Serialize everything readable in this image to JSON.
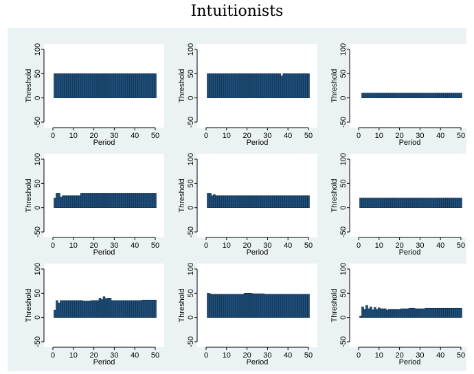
{
  "title": "Intuitionists",
  "colors": {
    "bar_fill": "#1f4e79",
    "bar_stroke": "#0e2b47",
    "background": "#eaf2f3",
    "panel": "#ffffff"
  },
  "chart_data": [
    {
      "type": "bar",
      "xlabel": "Period",
      "ylabel": "Threshold",
      "xlim": [
        0,
        50
      ],
      "ylim": [
        -50,
        100
      ],
      "xticks": [
        0,
        10,
        20,
        30,
        40,
        50
      ],
      "yticks": [
        -50,
        0,
        50,
        100
      ],
      "grid": false,
      "x_range": [
        1,
        50
      ],
      "values_spec": [
        {
          "from": 1,
          "to": 50,
          "v": 50
        }
      ]
    },
    {
      "type": "bar",
      "xlabel": "Period",
      "ylabel": "Threshold",
      "xlim": [
        0,
        50
      ],
      "ylim": [
        -50,
        100
      ],
      "xticks": [
        0,
        10,
        20,
        30,
        40,
        50
      ],
      "yticks": [
        -50,
        0,
        50,
        100
      ],
      "grid": false,
      "x_range": [
        1,
        50
      ],
      "values_spec": [
        {
          "from": 1,
          "to": 36,
          "v": 50
        },
        {
          "from": 37,
          "to": 37,
          "v": 45
        },
        {
          "from": 38,
          "to": 50,
          "v": 50
        }
      ]
    },
    {
      "type": "bar",
      "xlabel": "Period",
      "ylabel": "Threshold",
      "xlim": [
        0,
        50
      ],
      "ylim": [
        -50,
        100
      ],
      "xticks": [
        0,
        10,
        20,
        30,
        40,
        50
      ],
      "yticks": [
        -50,
        0,
        50,
        100
      ],
      "grid": false,
      "x_range": [
        2,
        50
      ],
      "values_spec": [
        {
          "from": 2,
          "to": 50,
          "v": 10
        }
      ]
    },
    {
      "type": "bar",
      "xlabel": "Period",
      "ylabel": "Threshold",
      "xlim": [
        0,
        50
      ],
      "ylim": [
        -50,
        100
      ],
      "xticks": [
        0,
        10,
        20,
        30,
        40,
        50
      ],
      "yticks": [
        -50,
        0,
        50,
        100
      ],
      "grid": false,
      "x_range": [
        1,
        50
      ],
      "values_spec": [
        {
          "from": 1,
          "to": 1,
          "v": 20
        },
        {
          "from": 2,
          "to": 3,
          "v": 30
        },
        {
          "from": 4,
          "to": 4,
          "v": 22
        },
        {
          "from": 5,
          "to": 13,
          "v": 25
        },
        {
          "from": 14,
          "to": 50,
          "v": 30
        }
      ]
    },
    {
      "type": "bar",
      "xlabel": "Period",
      "ylabel": "Threshold",
      "xlim": [
        0,
        50
      ],
      "ylim": [
        -50,
        100
      ],
      "xticks": [
        0,
        10,
        20,
        30,
        40,
        50
      ],
      "yticks": [
        -50,
        0,
        50,
        100
      ],
      "grid": false,
      "x_range": [
        1,
        50
      ],
      "values_spec": [
        {
          "from": 1,
          "to": 2,
          "v": 30
        },
        {
          "from": 3,
          "to": 3,
          "v": 25
        },
        {
          "from": 4,
          "to": 4,
          "v": 27
        },
        {
          "from": 5,
          "to": 50,
          "v": 25
        }
      ]
    },
    {
      "type": "bar",
      "xlabel": "Period",
      "ylabel": "Threshold",
      "xlim": [
        0,
        50
      ],
      "ylim": [
        -50,
        100
      ],
      "xticks": [
        0,
        10,
        20,
        30,
        40,
        50
      ],
      "yticks": [
        -50,
        0,
        50,
        100
      ],
      "grid": false,
      "x_range": [
        1,
        50
      ],
      "values_spec": [
        {
          "from": 1,
          "to": 50,
          "v": 20
        }
      ]
    },
    {
      "type": "bar",
      "xlabel": "Period",
      "ylabel": "Threshold",
      "xlim": [
        0,
        50
      ],
      "ylim": [
        -50,
        100
      ],
      "xticks": [
        0,
        10,
        20,
        30,
        40,
        50
      ],
      "yticks": [
        -50,
        0,
        50,
        100
      ],
      "grid": false,
      "x_range": [
        1,
        50
      ],
      "values_spec": [
        {
          "from": 1,
          "to": 1,
          "v": 15
        },
        {
          "from": 2,
          "to": 2,
          "v": 35
        },
        {
          "from": 3,
          "to": 3,
          "v": 30
        },
        {
          "from": 4,
          "to": 14,
          "v": 35
        },
        {
          "from": 15,
          "to": 18,
          "v": 34
        },
        {
          "from": 19,
          "to": 22,
          "v": 35
        },
        {
          "from": 23,
          "to": 23,
          "v": 40
        },
        {
          "from": 24,
          "to": 24,
          "v": 37
        },
        {
          "from": 25,
          "to": 25,
          "v": 43
        },
        {
          "from": 26,
          "to": 26,
          "v": 39
        },
        {
          "from": 27,
          "to": 28,
          "v": 40
        },
        {
          "from": 29,
          "to": 43,
          "v": 35
        },
        {
          "from": 44,
          "to": 50,
          "v": 36
        }
      ]
    },
    {
      "type": "bar",
      "xlabel": "Period",
      "ylabel": "Threshold",
      "xlim": [
        0,
        50
      ],
      "ylim": [
        -50,
        100
      ],
      "xticks": [
        0,
        10,
        20,
        30,
        40,
        50
      ],
      "yticks": [
        -50,
        0,
        50,
        100
      ],
      "grid": false,
      "x_range": [
        1,
        50
      ],
      "values_spec": [
        {
          "from": 1,
          "to": 1,
          "v": 50
        },
        {
          "from": 2,
          "to": 2,
          "v": 49
        },
        {
          "from": 3,
          "to": 18,
          "v": 48
        },
        {
          "from": 19,
          "to": 22,
          "v": 50
        },
        {
          "from": 23,
          "to": 28,
          "v": 49
        },
        {
          "from": 29,
          "to": 50,
          "v": 48
        }
      ]
    },
    {
      "type": "bar",
      "xlabel": "Period",
      "ylabel": "Threshold",
      "xlim": [
        0,
        50
      ],
      "ylim": [
        -50,
        100
      ],
      "xticks": [
        0,
        10,
        20,
        30,
        40,
        50
      ],
      "yticks": [
        -50,
        0,
        50,
        100
      ],
      "grid": false,
      "x_range": [
        1,
        50
      ],
      "values_spec": [
        {
          "from": 1,
          "to": 1,
          "v": 3
        },
        {
          "from": 2,
          "to": 2,
          "v": 22
        },
        {
          "from": 3,
          "to": 3,
          "v": 17
        },
        {
          "from": 4,
          "to": 4,
          "v": 25
        },
        {
          "from": 5,
          "to": 5,
          "v": 18
        },
        {
          "from": 6,
          "to": 6,
          "v": 22
        },
        {
          "from": 7,
          "to": 7,
          "v": 16
        },
        {
          "from": 8,
          "to": 8,
          "v": 21
        },
        {
          "from": 9,
          "to": 9,
          "v": 17
        },
        {
          "from": 10,
          "to": 10,
          "v": 20
        },
        {
          "from": 11,
          "to": 13,
          "v": 18
        },
        {
          "from": 14,
          "to": 14,
          "v": 15
        },
        {
          "from": 15,
          "to": 20,
          "v": 17
        },
        {
          "from": 21,
          "to": 24,
          "v": 18
        },
        {
          "from": 25,
          "to": 27,
          "v": 19
        },
        {
          "from": 28,
          "to": 32,
          "v": 18
        },
        {
          "from": 33,
          "to": 50,
          "v": 19
        }
      ]
    }
  ]
}
